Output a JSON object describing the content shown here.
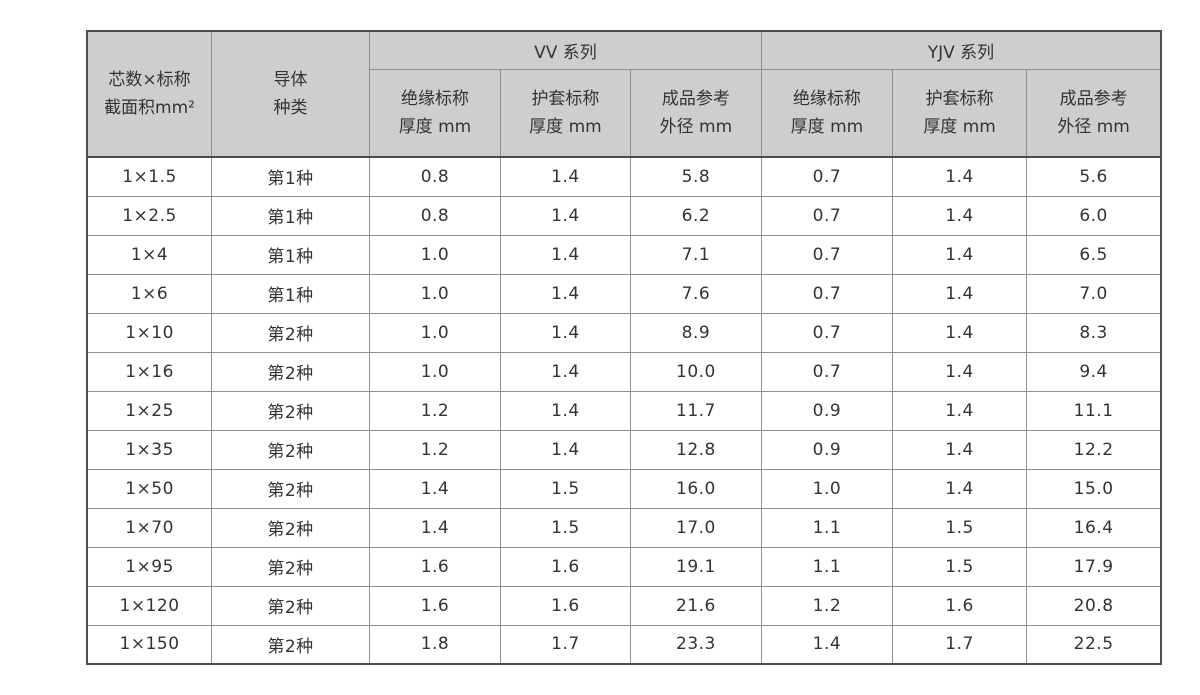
{
  "page": {
    "background": "#ffffff"
  },
  "table": {
    "colors": {
      "header_bg": "#cecece",
      "border_inner": "#8f8f8f",
      "border_outer": "#4d4d4d",
      "text": "#333333"
    },
    "header": {
      "spec": {
        "line1": "芯数×标称",
        "line2": "截面积mm²"
      },
      "conductor": {
        "line1": "导体",
        "line2": "种类"
      },
      "vv_group": "VV 系列",
      "yjv_group": "YJV 系列",
      "sub": {
        "insulation": {
          "line1": "绝缘标称",
          "line2": "厚度 mm"
        },
        "sheath": {
          "line1": "护套标称",
          "line2": "厚度 mm"
        },
        "diameter": {
          "line1": "成品参考",
          "line2": "外径 mm"
        }
      }
    },
    "cell_names": [
      "spec-cell",
      "conductor-cell",
      "vv-insulation-cell",
      "vv-sheath-cell",
      "vv-diameter-cell",
      "yjv-insulation-cell",
      "yjv-sheath-cell",
      "yjv-diameter-cell"
    ],
    "rows": [
      {
        "spec": "1×1.5",
        "conductor": "第1种",
        "vv": [
          "0.8",
          "1.4",
          "5.8"
        ],
        "yjv": [
          "0.7",
          "1.4",
          "5.6"
        ]
      },
      {
        "spec": "1×2.5",
        "conductor": "第1种",
        "vv": [
          "0.8",
          "1.4",
          "6.2"
        ],
        "yjv": [
          "0.7",
          "1.4",
          "6.0"
        ]
      },
      {
        "spec": "1×4",
        "conductor": "第1种",
        "vv": [
          "1.0",
          "1.4",
          "7.1"
        ],
        "yjv": [
          "0.7",
          "1.4",
          "6.5"
        ]
      },
      {
        "spec": "1×6",
        "conductor": "第1种",
        "vv": [
          "1.0",
          "1.4",
          "7.6"
        ],
        "yjv": [
          "0.7",
          "1.4",
          "7.0"
        ]
      },
      {
        "spec": "1×10",
        "conductor": "第2种",
        "vv": [
          "1.0",
          "1.4",
          "8.9"
        ],
        "yjv": [
          "0.7",
          "1.4",
          "8.3"
        ]
      },
      {
        "spec": "1×16",
        "conductor": "第2种",
        "vv": [
          "1.0",
          "1.4",
          "10.0"
        ],
        "yjv": [
          "0.7",
          "1.4",
          "9.4"
        ]
      },
      {
        "spec": "1×25",
        "conductor": "第2种",
        "vv": [
          "1.2",
          "1.4",
          "11.7"
        ],
        "yjv": [
          "0.9",
          "1.4",
          "11.1"
        ]
      },
      {
        "spec": "1×35",
        "conductor": "第2种",
        "vv": [
          "1.2",
          "1.4",
          "12.8"
        ],
        "yjv": [
          "0.9",
          "1.4",
          "12.2"
        ]
      },
      {
        "spec": "1×50",
        "conductor": "第2种",
        "vv": [
          "1.4",
          "1.5",
          "16.0"
        ],
        "yjv": [
          "1.0",
          "1.4",
          "15.0"
        ]
      },
      {
        "spec": "1×70",
        "conductor": "第2种",
        "vv": [
          "1.4",
          "1.5",
          "17.0"
        ],
        "yjv": [
          "1.1",
          "1.5",
          "16.4"
        ]
      },
      {
        "spec": "1×95",
        "conductor": "第2种",
        "vv": [
          "1.6",
          "1.6",
          "19.1"
        ],
        "yjv": [
          "1.1",
          "1.5",
          "17.9"
        ]
      },
      {
        "spec": "1×120",
        "conductor": "第2种",
        "vv": [
          "1.6",
          "1.6",
          "21.6"
        ],
        "yjv": [
          "1.2",
          "1.6",
          "20.8"
        ]
      },
      {
        "spec": "1×150",
        "conductor": "第2种",
        "vv": [
          "1.8",
          "1.7",
          "23.3"
        ],
        "yjv": [
          "1.4",
          "1.7",
          "22.5"
        ]
      }
    ]
  }
}
